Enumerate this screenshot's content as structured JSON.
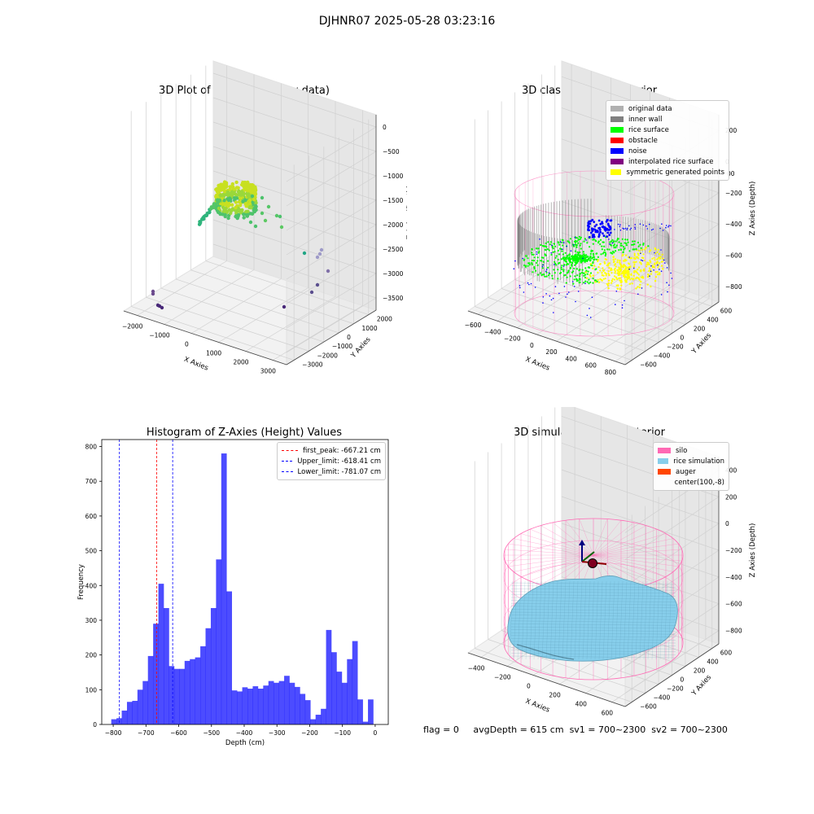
{
  "suptitle": "DJHNR07 2025-05-28 03:23:16",
  "colors": {
    "original": "#b0b0b0",
    "inner_wall": "#808080",
    "rice_surface": "#00ff00",
    "obstacle": "#ff0000",
    "noise": "#0000ff",
    "interpolated": "#800080",
    "symmetric": "#ffff00",
    "silo": "#ff69b4",
    "rice_sim": "#87ceeb",
    "auger": "#ff4500",
    "hist": "#0000ff"
  },
  "footer": {
    "flag": "flag = 0",
    "avg": "avgDepth = 615 cm",
    "sv1": "sv1 = 700~2300",
    "sv2": "sv2 = 700~2300"
  },
  "chart_data": [
    {
      "type": "scatter",
      "title": "3D Plot of Silo Interior(row data)",
      "xlabel": "X Axies",
      "ylabel": "Y Axies",
      "zlabel": "Z Axies (Depth)",
      "x_ticks": [
        "−2000",
        "−1000",
        "0",
        "1000",
        "2000",
        "3000"
      ],
      "y_ticks": [
        "−3000",
        "−2000",
        "−1000",
        "0",
        "1000",
        "2000"
      ],
      "z_ticks": [
        "0",
        "−500",
        "−1000",
        "−1500",
        "−2000",
        "−2500",
        "−3000",
        "−3500"
      ],
      "colormap": "viridis",
      "grid": true
    },
    {
      "type": "scatter",
      "title": "3D classify of Silo Interior",
      "xlabel": "X Axies",
      "ylabel": "Y Axies",
      "zlabel": "Z Axies (Depth)",
      "x_ticks": [
        "−600",
        "−400",
        "−200",
        "0",
        "200",
        "400",
        "600",
        "800"
      ],
      "y_ticks": [
        "−600",
        "−400",
        "−200",
        "0",
        "200",
        "400",
        "600"
      ],
      "z_ticks": [
        "200",
        "0",
        "−200",
        "−400",
        "−600",
        "−800"
      ],
      "z_partial_tick": "00",
      "legend": [
        {
          "label": "original data",
          "color": "#b0b0b0"
        },
        {
          "label": "inner wall",
          "color": "#808080"
        },
        {
          "label": "rice surface",
          "color": "#00ff00"
        },
        {
          "label": "obstacle",
          "color": "#ff0000"
        },
        {
          "label": "noise",
          "color": "#0000ff"
        },
        {
          "label": "interpolated rice surface",
          "color": "#800080"
        },
        {
          "label": "symmetric generated points",
          "color": "#ffff00"
        }
      ],
      "legend_position": "top-right",
      "grid": true
    },
    {
      "type": "bar",
      "title": "Histogram of Z-Axies (Height) Values",
      "xlabel": "Depth (cm)",
      "ylabel": "Frequency",
      "xlim": [
        -835,
        40
      ],
      "ylim": [
        0,
        820
      ],
      "x_ticks": [
        -800,
        -700,
        -600,
        -500,
        -400,
        -300,
        -200,
        -100,
        0
      ],
      "y_ticks": [
        0,
        100,
        200,
        300,
        400,
        500,
        600,
        700,
        800
      ],
      "bin_width": 16,
      "bin_start": -806,
      "values": [
        15,
        18,
        40,
        65,
        68,
        100,
        125,
        197,
        290,
        405,
        335,
        168,
        160,
        160,
        183,
        188,
        193,
        225,
        277,
        335,
        475,
        780,
        383,
        98,
        95,
        107,
        103,
        110,
        103,
        112,
        125,
        120,
        125,
        140,
        120,
        108,
        88,
        70,
        15,
        28,
        45,
        272,
        208,
        152,
        120,
        188,
        240,
        72,
        8,
        72
      ],
      "vlines": [
        {
          "label": "first_peak: -667.21 cm",
          "x": -667.21,
          "color": "#ff0000"
        },
        {
          "label": "Upper_limit: -618.41 cm",
          "x": -618.41,
          "color": "#0000ff"
        },
        {
          "label": "Lower_limit: -781.07 cm",
          "x": -781.07,
          "color": "#0000ff"
        }
      ],
      "legend_position": "top-right",
      "grid": false
    },
    {
      "type": "scatter",
      "title": "3D simulation of Silo Interior",
      "xlabel": "X Axies",
      "ylabel": "Y Axies",
      "zlabel": "Z Axies (Depth)",
      "x_ticks": [
        "−400",
        "−200",
        "0",
        "200",
        "400",
        "600"
      ],
      "y_ticks": [
        "−600",
        "−400",
        "−200",
        "0",
        "200",
        "400",
        "600"
      ],
      "z_ticks": [
        "400",
        "200",
        "0",
        "−200",
        "−400",
        "−600",
        "−800"
      ],
      "legend": [
        {
          "label": "silo",
          "color": "#ff69b4"
        },
        {
          "label": "rice simulation",
          "color": "#87ceeb"
        },
        {
          "label": "auger",
          "color": "#ff4500"
        },
        {
          "label": "center(100,-8)",
          "color": ""
        }
      ],
      "legend_position": "top-right",
      "grid": true
    }
  ]
}
